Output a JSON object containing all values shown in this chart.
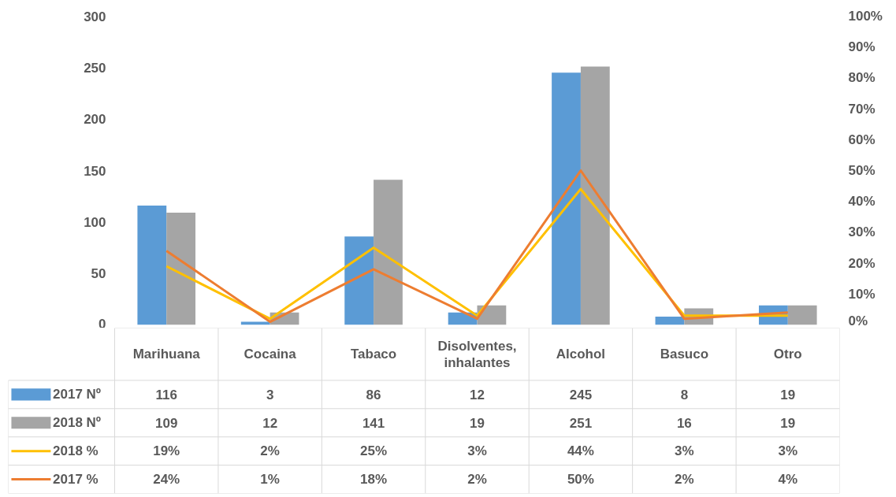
{
  "chart_data": {
    "type": "bar",
    "categories": [
      "Marihuana",
      "Cocaina",
      "Tabaco",
      "Disolventes, inhalantes",
      "Alcohol",
      "Basuco",
      "Otro"
    ],
    "series": [
      {
        "name": "2017 Nº",
        "color": "#5b9bd5",
        "values": [
          116,
          3,
          86,
          12,
          245,
          8,
          19
        ],
        "value_labels": [
          "116",
          "3",
          "86",
          "12",
          "245",
          "8",
          "19"
        ]
      },
      {
        "name": "2018 Nº",
        "color": "#a5a5a5",
        "values": [
          109,
          12,
          141,
          19,
          251,
          16,
          19
        ],
        "value_labels": [
          "109",
          "12",
          "141",
          "19",
          "251",
          "16",
          "19"
        ]
      },
      {
        "name": "2018 %",
        "type": "line",
        "axis": "y2",
        "color": "#ffc000",
        "values": [
          19,
          2,
          25,
          3,
          44,
          3,
          3
        ],
        "value_labels": [
          "19%",
          "2%",
          "25%",
          "3%",
          "44%",
          "3%",
          "3%"
        ]
      },
      {
        "name": "2017 %",
        "type": "line",
        "axis": "y2",
        "color": "#ed7d31",
        "values": [
          24,
          1,
          18,
          2,
          50,
          2,
          4
        ],
        "value_labels": [
          "24%",
          "1%",
          "18%",
          "2%",
          "50%",
          "2%",
          "4%"
        ]
      }
    ],
    "ylim": [
      0,
      300
    ],
    "yticks": [
      0,
      50,
      100,
      150,
      200,
      250,
      300
    ],
    "y2lim": [
      0,
      100
    ],
    "y2ticks": [
      {
        "value": 0,
        "label": "0%"
      },
      {
        "value": 10,
        "label": "10%"
      },
      {
        "value": 20,
        "label": "20%"
      },
      {
        "value": 30,
        "label": "30%"
      },
      {
        "value": 40,
        "label": "40%"
      },
      {
        "value": 50,
        "label": "50%"
      },
      {
        "value": 60,
        "label": "60%"
      },
      {
        "value": 70,
        "label": "70%"
      },
      {
        "value": 80,
        "label": "80%"
      },
      {
        "value": 90,
        "label": "90%"
      },
      {
        "value": 100,
        "label": "100%"
      }
    ],
    "legend": "bottom",
    "grid": false
  }
}
